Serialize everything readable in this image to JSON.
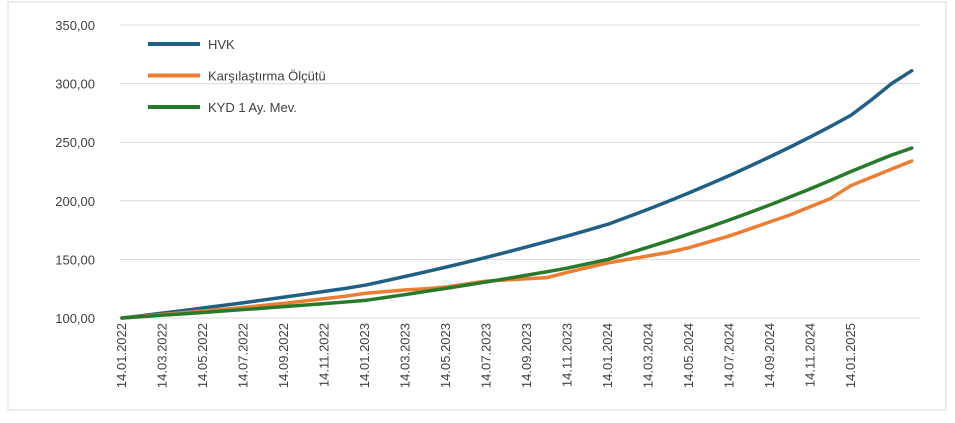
{
  "chart_data": {
    "type": "line",
    "categories": [
      "14.01.2022",
      null,
      "14.03.2022",
      null,
      "14.05.2022",
      null,
      "14.07.2022",
      null,
      "14.09.2022",
      null,
      "14.11.2022",
      null,
      "14.01.2023",
      null,
      "14.03.2023",
      null,
      "14.05.2023",
      null,
      "14.07.2023",
      null,
      "14.09.2023",
      null,
      "14.11.2023",
      null,
      "14.01.2024",
      null,
      "14.03.2024",
      null,
      "14.05.2024",
      null,
      "14.07.2024",
      null,
      "14.09.2024",
      null,
      "14.11.2024",
      null,
      "14.01.2025",
      null,
      null,
      null
    ],
    "series": [
      {
        "name": "HVK",
        "color": "#215f85",
        "values": [
          100,
          102,
          104.2,
          106.3,
          108.5,
          110.8,
          113,
          115.4,
          117.8,
          120.2,
          122.7,
          125.2,
          128,
          131.7,
          135.5,
          139.4,
          143.4,
          147.5,
          151.8,
          156.2,
          160.7,
          165.3,
          170,
          174.9,
          180,
          186.4,
          192.9,
          199.7,
          206.8,
          214.1,
          221.6,
          229.5,
          237.6,
          245.9,
          254.6,
          263.6,
          273,
          286,
          300,
          311
        ]
      },
      {
        "name": "Karşılaştırma Ölçütü",
        "color": "#ed7d31",
        "values": [
          100,
          101.5,
          103,
          104.5,
          106,
          107.5,
          109,
          110.8,
          112.5,
          114.5,
          116.5,
          118.5,
          121,
          122.5,
          124,
          125,
          126.5,
          129,
          131.5,
          132.5,
          133.5,
          134.5,
          139,
          143,
          147,
          150,
          153,
          156,
          160,
          165,
          170,
          176,
          182,
          188,
          195,
          202,
          213,
          220,
          227,
          234
        ]
      },
      {
        "name": "KYD 1 Ay. Mev.",
        "color": "#267a2a",
        "values": [
          100,
          101.2,
          102.4,
          103.5,
          104.7,
          106,
          107.2,
          108.4,
          109.7,
          111,
          112.3,
          113.6,
          115,
          117.5,
          120,
          122.7,
          125.3,
          128,
          130.8,
          133.6,
          136.6,
          139.5,
          142.6,
          146.3,
          150,
          155.2,
          160.5,
          166,
          171.7,
          177.6,
          183.7,
          190,
          196.5,
          203.3,
          210.3,
          217.5,
          225,
          232,
          239,
          245
        ]
      }
    ],
    "ylim": [
      100,
      350
    ],
    "yticks": [
      {
        "value": 100,
        "label": "100,00"
      },
      {
        "value": 150,
        "label": "150,00"
      },
      {
        "value": 200,
        "label": "200,00"
      },
      {
        "value": 250,
        "label": "250,00"
      },
      {
        "value": 300,
        "label": "300,00"
      },
      {
        "value": 350,
        "label": "350,00"
      }
    ],
    "grid": true,
    "legend": "upper-left"
  }
}
